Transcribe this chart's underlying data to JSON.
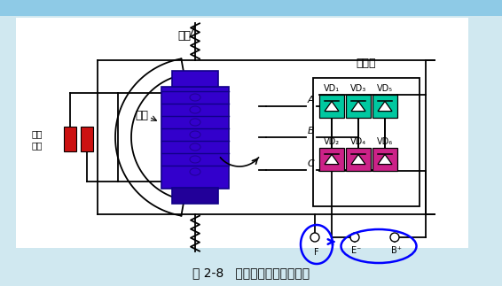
{
  "title": "图 2-8   交流发电机工作原理图",
  "bg_top": "#8ecae6",
  "bg_main": "#d0e8f0",
  "white": "#ffffff",
  "diode_green": "#00c8a0",
  "diode_pink": "#cc2288",
  "rotor_color": "#3300cc",
  "rotor_dark": "#220099",
  "rotor_mid": "#4422cc",
  "brush_color": "#cc1111",
  "stator_label": "定子",
  "rotor_label": "转子",
  "rectifier_label": "整流器",
  "brush_label1": "滑环",
  "brush_label2": "电刷",
  "vd_top": [
    "VD₁",
    "VD₃",
    "VD₅"
  ],
  "vd_bot": [
    "VD₂",
    "VD₄",
    "VD₆"
  ],
  "title_fontsize": 10,
  "label_fontsize": 9
}
